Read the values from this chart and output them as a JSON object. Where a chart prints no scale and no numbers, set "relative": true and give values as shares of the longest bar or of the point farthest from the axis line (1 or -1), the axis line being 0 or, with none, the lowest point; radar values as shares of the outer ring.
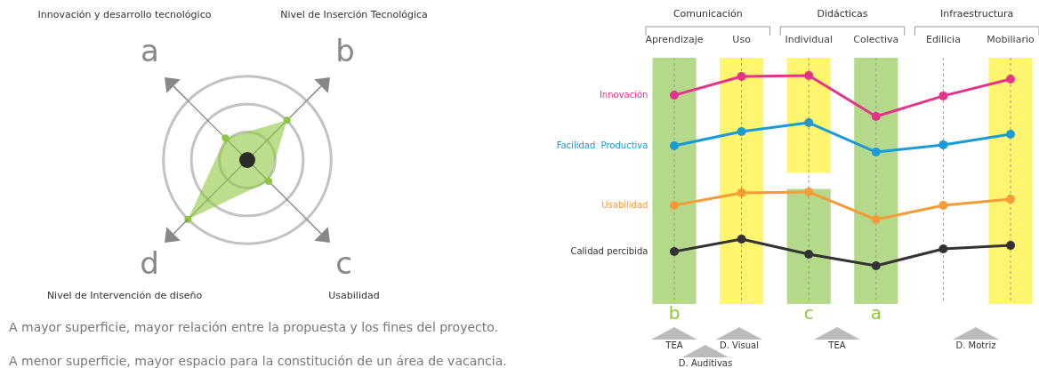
{
  "chart_data": [
    {
      "type": "radar",
      "relative": true,
      "categories": [
        "a",
        "b",
        "c",
        "d"
      ],
      "marker": "circle",
      "series": [
        {
          "color": "#8dc63f",
          "values": [
            0.37,
            0.67,
            0.36,
            1.0
          ]
        }
      ],
      "annotations": [
        "Innovación y desarrollo tecnológico",
        "Nivel de Inserción Tecnológica",
        "Nivel de Intervención de diseño",
        "Usabilidad",
        "A mayor superficie, mayor relación entre la propuesta y los fines del proyecto.",
        "A menor superficie, mayor espacio para la constitución de un área de vacancia."
      ]
    },
    {
      "type": "line",
      "relative": true,
      "categories": [
        "Aprendizaje",
        "Uso",
        "Individual",
        "Colectiva",
        "Edilicia",
        "Mobiliario"
      ],
      "grid": "x",
      "marker": "circle",
      "legend": false,
      "series": [
        {
          "name": "Innovación",
          "color": "#e6338a",
          "values": [
            0.897,
            0.995,
            1.0,
            0.785,
            0.893,
            0.981
          ]
        },
        {
          "name": "Facilidad  Productiva",
          "color": "#1a9ad6",
          "values": [
            0.631,
            0.706,
            0.752,
            0.598,
            0.636,
            0.692
          ]
        },
        {
          "name": "Usabilidad",
          "color": "#f39c38",
          "values": [
            0.318,
            0.383,
            0.388,
            0.243,
            0.318,
            0.35
          ]
        },
        {
          "name": "Calidad percibida",
          "color": "#333333",
          "values": [
            0.075,
            0.14,
            0.061,
            0.0,
            0.089,
            0.107
          ]
        }
      ],
      "bands": [
        {
          "axis": "x",
          "from": "Aprendizaje",
          "to": "Aprendizaje",
          "label": "b",
          "color": "#b5d98a"
        },
        {
          "axis": "x",
          "from": "Individual",
          "to": "Individual",
          "label": "c",
          "color": "#b5d98a"
        },
        {
          "axis": "x",
          "from": "Colectiva",
          "to": "Colectiva",
          "label": "a",
          "color": "#b5d98a"
        },
        {
          "axis": "x",
          "from": "Uso",
          "to": "Uso",
          "color": "#fff56e"
        },
        {
          "axis": "x",
          "from": "Individual",
          "to": "Individual",
          "color": "#fff56e"
        },
        {
          "axis": "x",
          "from": "Mobiliario",
          "to": "Mobiliario",
          "color": "#fff56e"
        }
      ],
      "annotations": [
        "Comunicación",
        "Didácticas",
        "Infraestructura",
        "TEA",
        "D. Visual",
        "D. Auditivas",
        "TEA",
        "D. Motriz"
      ]
    }
  ]
}
